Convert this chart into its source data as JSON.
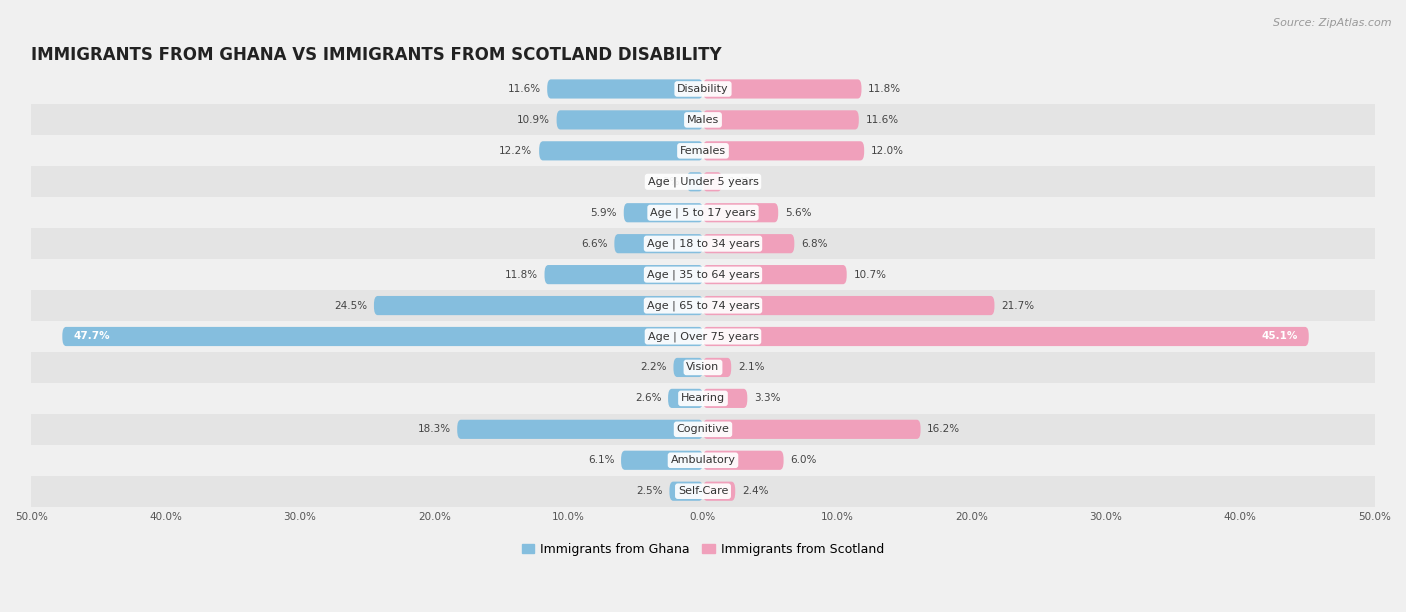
{
  "title": "IMMIGRANTS FROM GHANA VS IMMIGRANTS FROM SCOTLAND DISABILITY",
  "source": "Source: ZipAtlas.com",
  "categories": [
    "Disability",
    "Males",
    "Females",
    "Age | Under 5 years",
    "Age | 5 to 17 years",
    "Age | 18 to 34 years",
    "Age | 35 to 64 years",
    "Age | 65 to 74 years",
    "Age | Over 75 years",
    "Vision",
    "Hearing",
    "Cognitive",
    "Ambulatory",
    "Self-Care"
  ],
  "ghana_values": [
    11.6,
    10.9,
    12.2,
    1.2,
    5.9,
    6.6,
    11.8,
    24.5,
    47.7,
    2.2,
    2.6,
    18.3,
    6.1,
    2.5
  ],
  "scotland_values": [
    11.8,
    11.6,
    12.0,
    1.4,
    5.6,
    6.8,
    10.7,
    21.7,
    45.1,
    2.1,
    3.3,
    16.2,
    6.0,
    2.4
  ],
  "ghana_color": "#85BEDE",
  "scotland_color": "#F0A0BB",
  "ghana_label": "Immigrants from Ghana",
  "scotland_label": "Immigrants from Scotland",
  "axis_max": 50.0,
  "bar_height": 0.62,
  "background_color": "#f0f0f0",
  "row_bg_light": "#f0f0f0",
  "row_bg_dark": "#e4e4e4",
  "title_fontsize": 12,
  "label_fontsize": 8,
  "value_fontsize": 7.5,
  "legend_fontsize": 9,
  "source_fontsize": 8
}
